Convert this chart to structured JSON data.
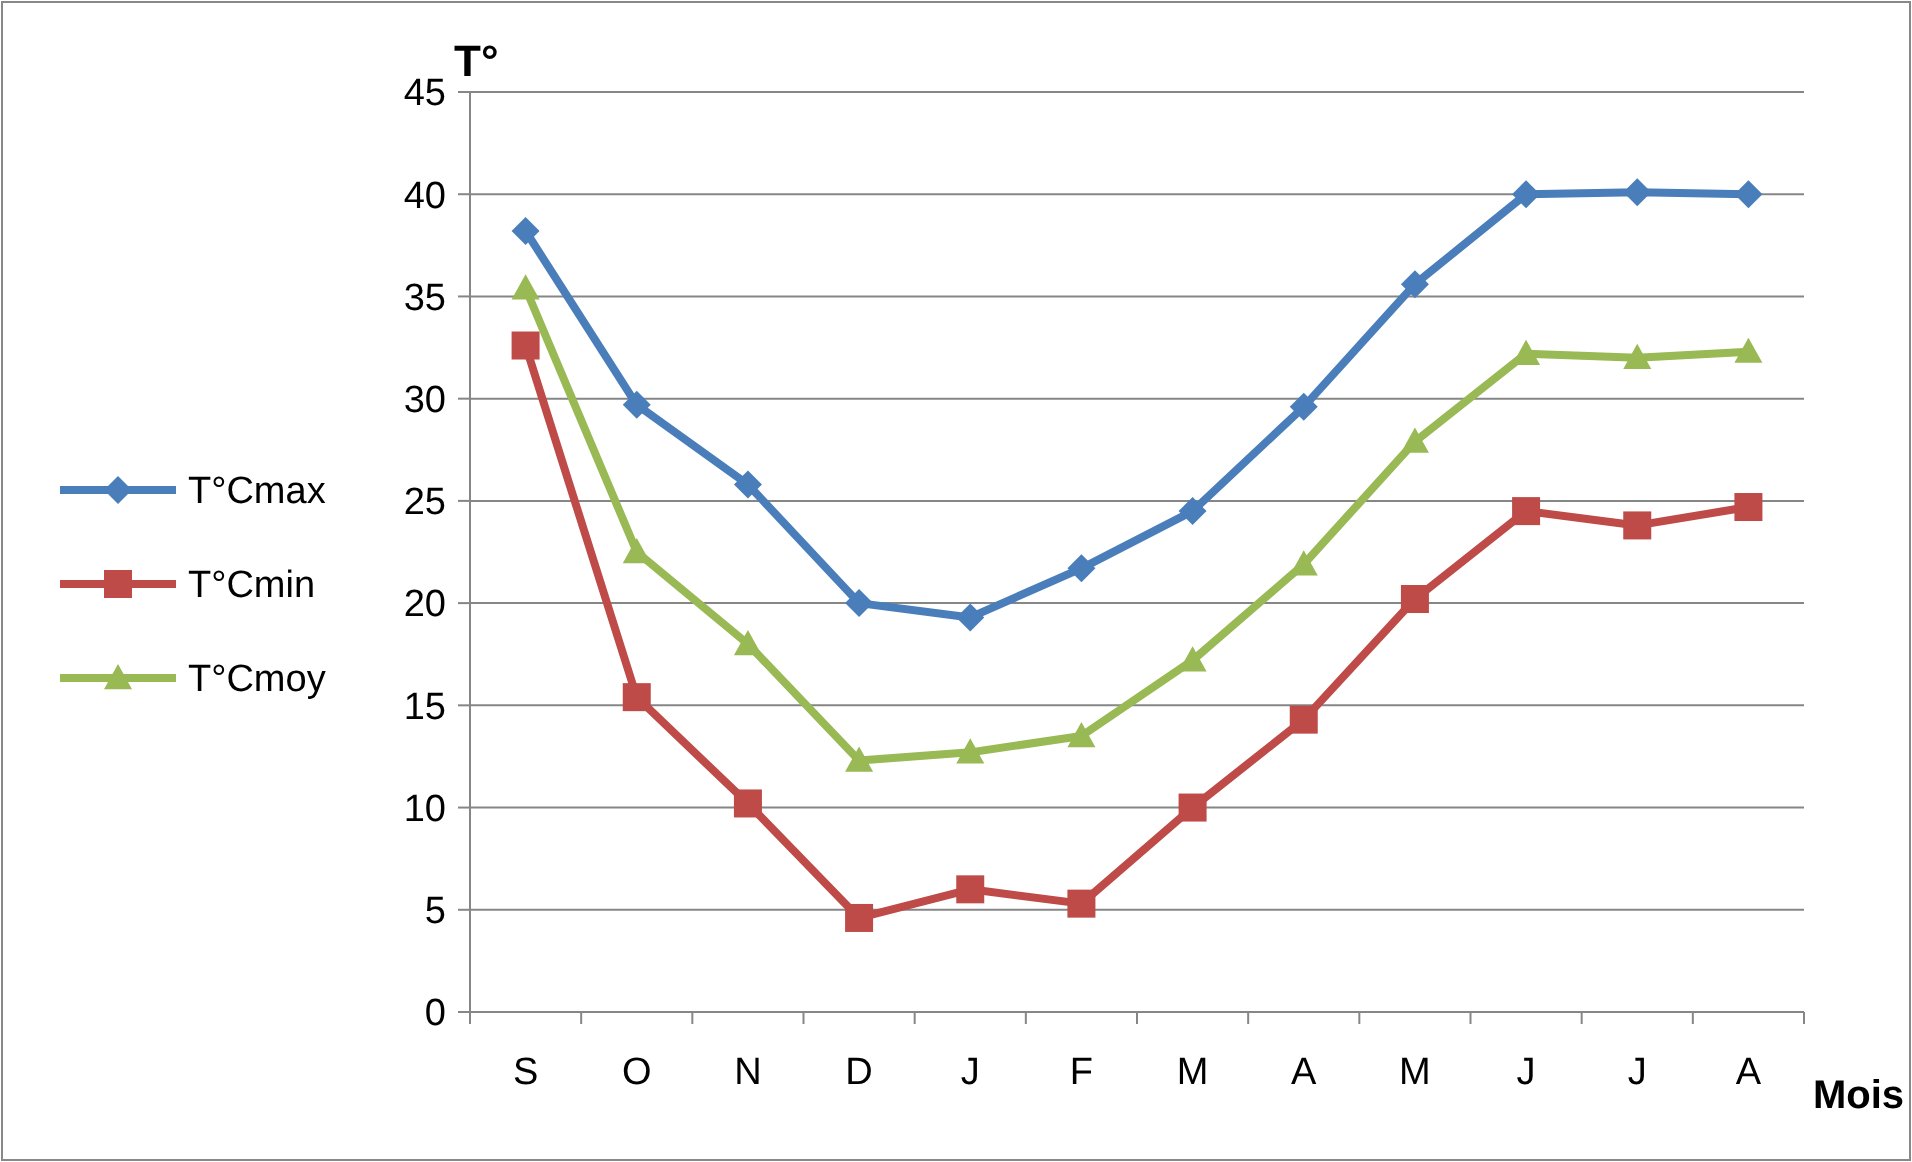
{
  "chart_data": {
    "type": "line",
    "ylabel": "T°",
    "xlabel": "Mois",
    "categories": [
      "S",
      "O",
      "N",
      "D",
      "J",
      "F",
      "M",
      "A",
      "M",
      "J",
      "J",
      "A"
    ],
    "series": [
      {
        "name": "T°Cmax",
        "color": "#4a7ebb",
        "marker": "diamond",
        "values": [
          38.2,
          29.7,
          25.8,
          20.0,
          19.3,
          21.7,
          24.5,
          29.6,
          35.6,
          40.0,
          40.1,
          40.0
        ]
      },
      {
        "name": "T°Cmin",
        "color": "#be4b48",
        "marker": "square",
        "values": [
          32.6,
          15.4,
          10.2,
          4.6,
          6.0,
          5.3,
          10.0,
          14.3,
          20.2,
          24.5,
          23.8,
          24.7
        ]
      },
      {
        "name": "T°Cmoy",
        "color": "#98b954",
        "marker": "triangle",
        "values": [
          35.4,
          22.5,
          18.0,
          12.3,
          12.7,
          13.5,
          17.2,
          21.9,
          27.9,
          32.2,
          32.0,
          32.3
        ]
      }
    ],
    "ylim": [
      0,
      45
    ],
    "yticks": [
      0,
      5,
      10,
      15,
      20,
      25,
      30,
      35,
      40,
      45
    ],
    "grid": "y",
    "legend": "left",
    "line_style": "solid"
  }
}
